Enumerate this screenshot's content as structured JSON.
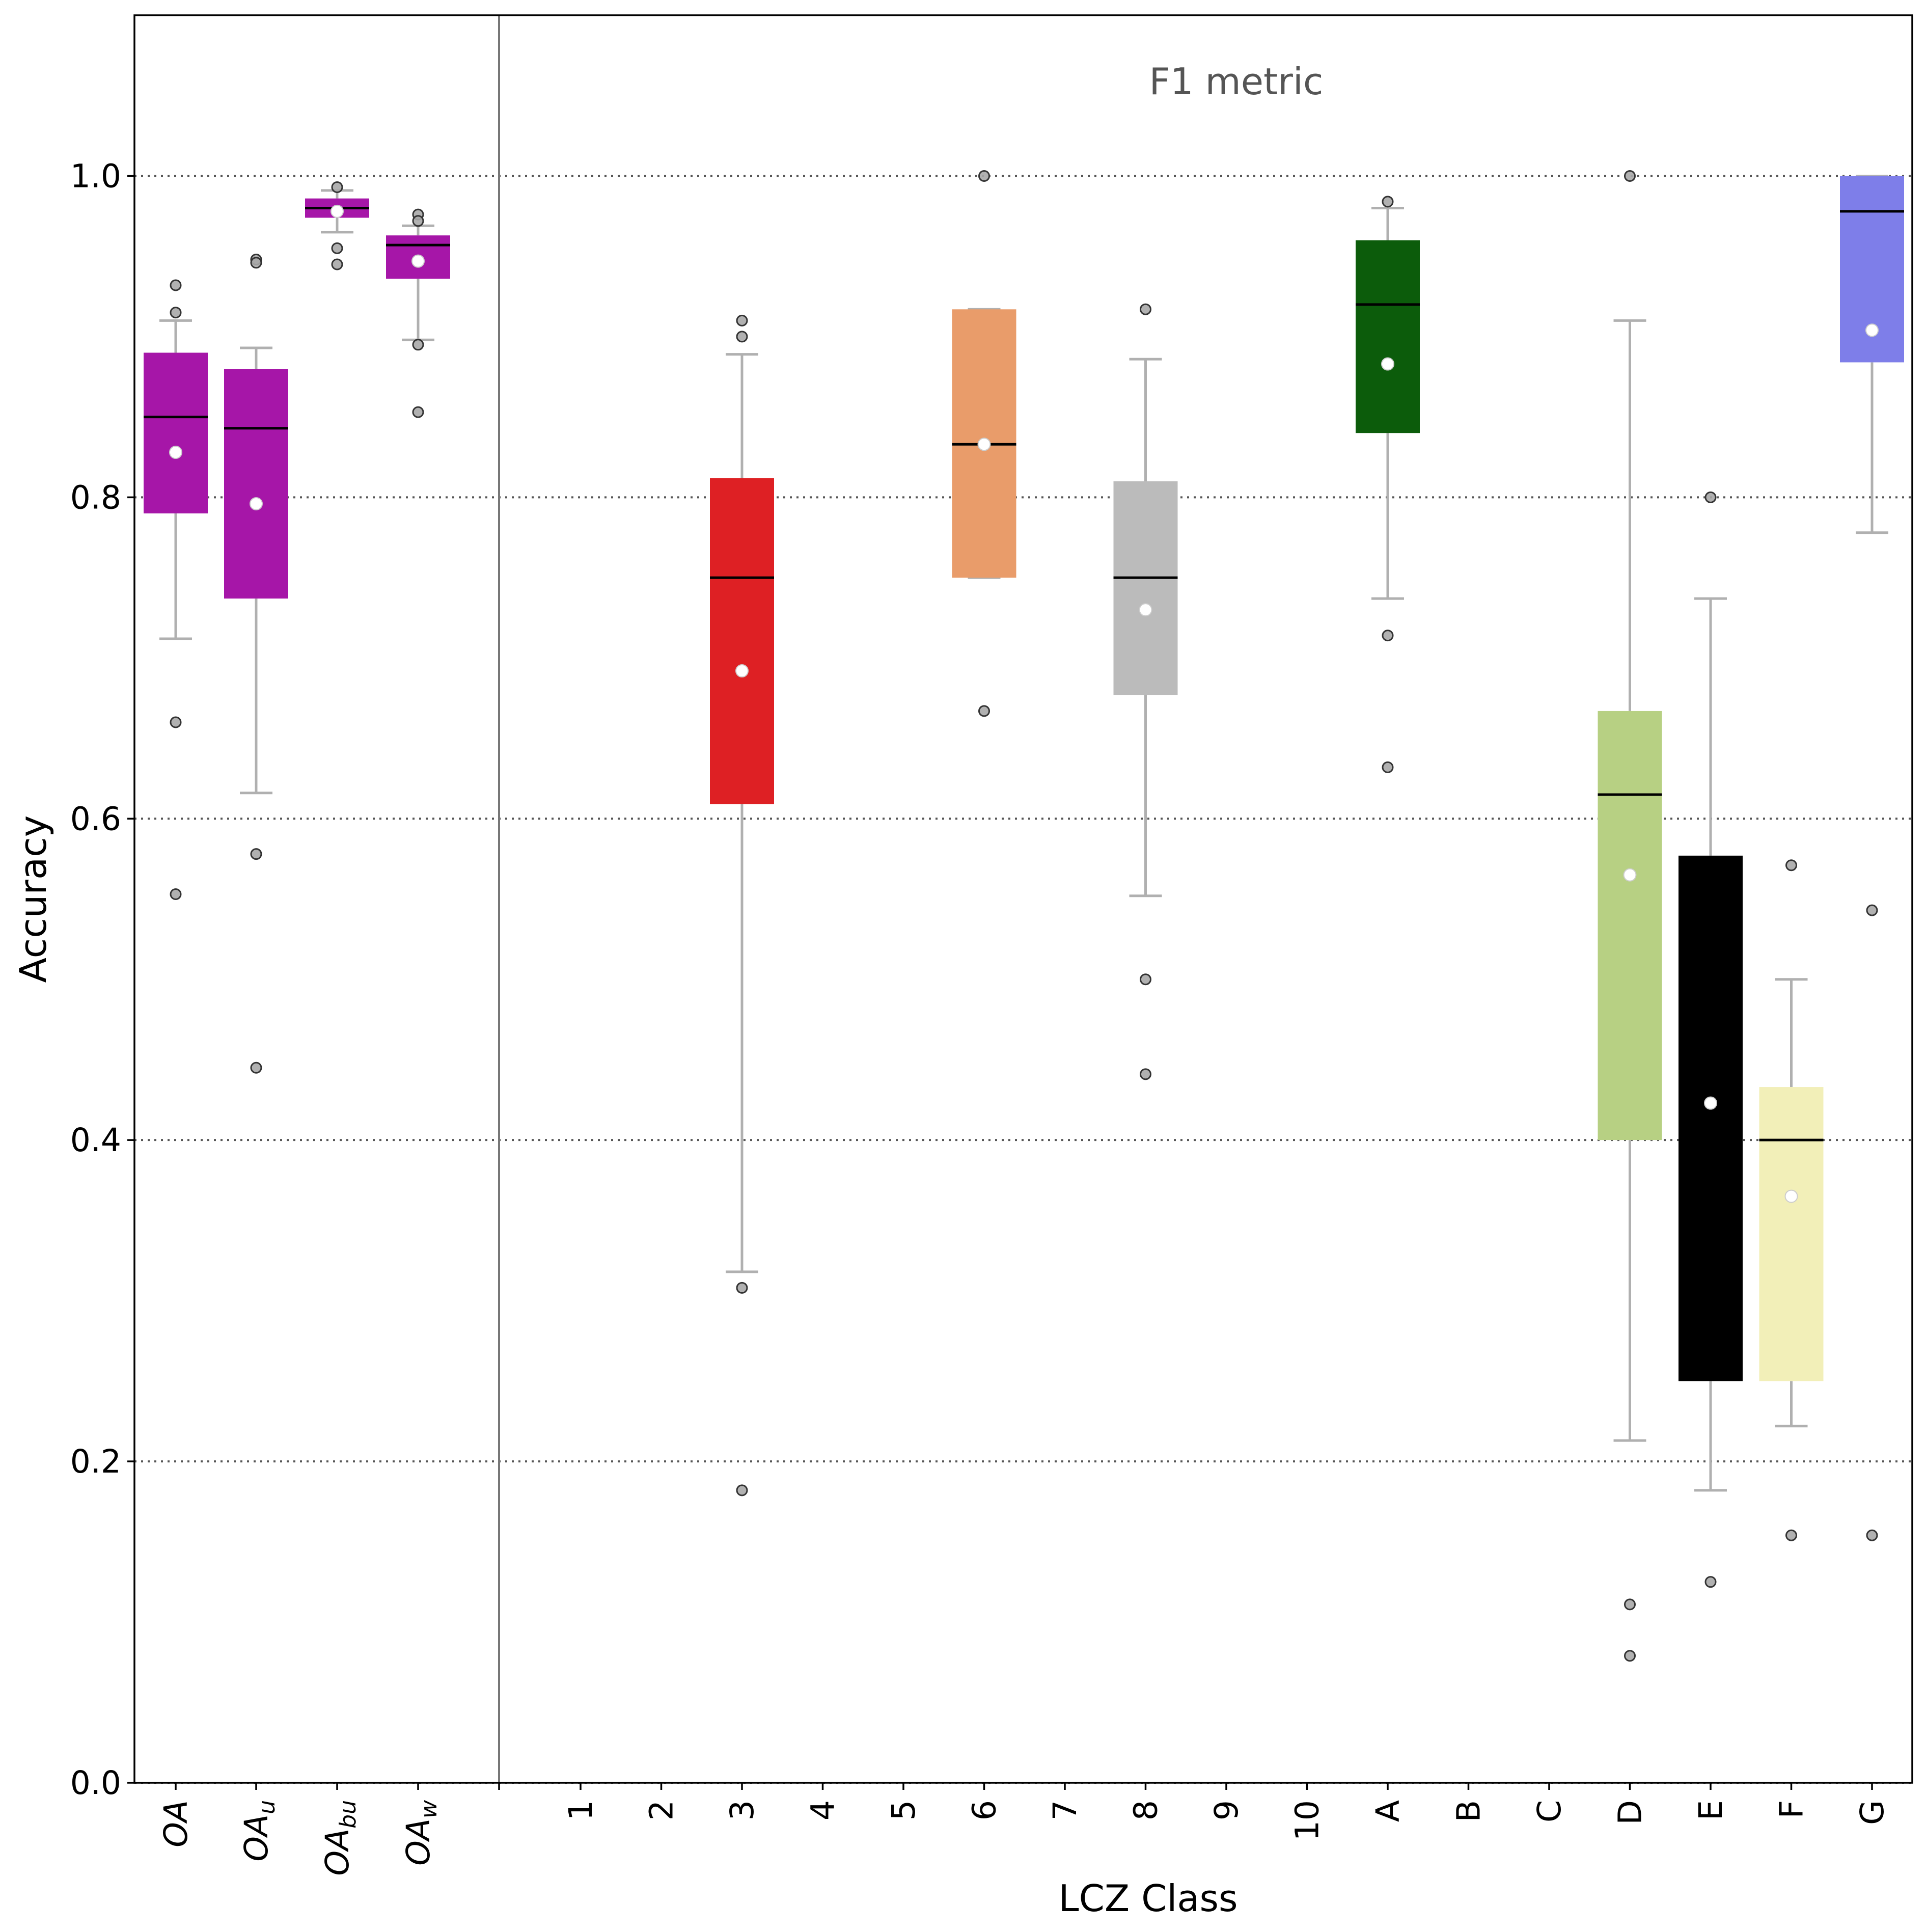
{
  "chart_data": {
    "type": "box",
    "annotation": "F1 metric",
    "xlabel": "LCZ Class",
    "ylabel": "Accuracy",
    "ylim": [
      0,
      1.1
    ],
    "yticks": [
      "0.0",
      "0.2",
      "0.4",
      "0.6",
      "0.8",
      "1.0"
    ],
    "grid": "horizontal dotted",
    "overall_categories": [
      {
        "base": "OA",
        "sub": ""
      },
      {
        "base": "OA",
        "sub": "u"
      },
      {
        "base": "OA",
        "sub": "bu"
      },
      {
        "base": "OA",
        "sub": "w"
      }
    ],
    "categories": [
      "1",
      "2",
      "3",
      "4",
      "5",
      "6",
      "7",
      "8",
      "9",
      "10",
      "A",
      "B",
      "C",
      "D",
      "E",
      "F",
      "G"
    ],
    "boxes": [
      {
        "cat": "OA",
        "group": "overall",
        "index": 0,
        "color": "#a616a8",
        "q1": 0.79,
        "median": 0.85,
        "q3": 0.89,
        "whislo": 0.712,
        "whishi": 0.91,
        "mean": 0.828,
        "fliers": [
          0.932,
          0.915,
          0.66,
          0.553
        ]
      },
      {
        "cat": "OAu",
        "group": "overall",
        "index": 1,
        "color": "#a616a8",
        "q1": 0.737,
        "median": 0.843,
        "q3": 0.88,
        "whislo": 0.616,
        "whishi": 0.893,
        "mean": 0.796,
        "fliers": [
          0.948,
          0.946,
          0.578,
          0.445
        ]
      },
      {
        "cat": "OAbu",
        "group": "overall",
        "index": 2,
        "color": "#a616a8",
        "q1": 0.974,
        "median": 0.98,
        "q3": 0.986,
        "whislo": 0.965,
        "whishi": 0.991,
        "mean": 0.978,
        "fliers": [
          0.993,
          0.955,
          0.945
        ]
      },
      {
        "cat": "OAw",
        "group": "overall",
        "index": 3,
        "color": "#a616a8",
        "q1": 0.936,
        "median": 0.957,
        "q3": 0.963,
        "whislo": 0.898,
        "whishi": 0.969,
        "mean": 0.947,
        "fliers": [
          0.976,
          0.972,
          0.895,
          0.853
        ]
      },
      {
        "cat": "3",
        "group": "lcz",
        "index": 2,
        "color": "#de2024",
        "q1": 0.609,
        "median": 0.75,
        "q3": 0.812,
        "whislo": 0.318,
        "whishi": 0.889,
        "mean": 0.692,
        "fliers": [
          0.91,
          0.9,
          0.308,
          0.182
        ]
      },
      {
        "cat": "6",
        "group": "lcz",
        "index": 5,
        "color": "#e99c6a",
        "q1": 0.75,
        "median": 0.833,
        "q3": 0.917,
        "whislo": 0.75,
        "whishi": 0.917,
        "mean": 0.833,
        "fliers": [
          1.0,
          0.667
        ]
      },
      {
        "cat": "8",
        "group": "lcz",
        "index": 7,
        "color": "#bbbbbb",
        "q1": 0.677,
        "median": 0.75,
        "q3": 0.81,
        "whislo": 0.552,
        "whishi": 0.886,
        "mean": 0.73,
        "fliers": [
          0.917,
          0.5,
          0.441
        ]
      },
      {
        "cat": "A",
        "group": "lcz",
        "index": 10,
        "color": "#0c5c0b",
        "q1": 0.84,
        "median": 0.92,
        "q3": 0.96,
        "whislo": 0.737,
        "whishi": 0.98,
        "mean": 0.883,
        "fliers": [
          0.984,
          0.714,
          0.632
        ]
      },
      {
        "cat": "D",
        "group": "lcz",
        "index": 13,
        "color": "#b7d083",
        "q1": 0.4,
        "median": 0.615,
        "q3": 0.667,
        "whislo": 0.213,
        "whishi": 0.91,
        "mean": 0.565,
        "fliers": [
          1.0,
          0.111,
          0.079
        ]
      },
      {
        "cat": "E",
        "group": "lcz",
        "index": 14,
        "color": "#000000",
        "q1": 0.25,
        "median": 0.4,
        "q3": 0.577,
        "whislo": 0.182,
        "whishi": 0.737,
        "mean": 0.423,
        "fliers": [
          0.8,
          0.125
        ]
      },
      {
        "cat": "F",
        "group": "lcz",
        "index": 15,
        "color": "#f2efb8",
        "q1": 0.25,
        "median": 0.4,
        "q3": 0.433,
        "whislo": 0.222,
        "whishi": 0.5,
        "mean": 0.365,
        "fliers": [
          0.571,
          0.154
        ]
      },
      {
        "cat": "G",
        "group": "lcz",
        "index": 16,
        "color": "#7e7ee9",
        "q1": 0.884,
        "median": 0.978,
        "q3": 1.0,
        "whislo": 0.778,
        "whishi": 1.0,
        "mean": 0.904,
        "fliers": [
          0.543,
          0.154
        ]
      }
    ]
  }
}
